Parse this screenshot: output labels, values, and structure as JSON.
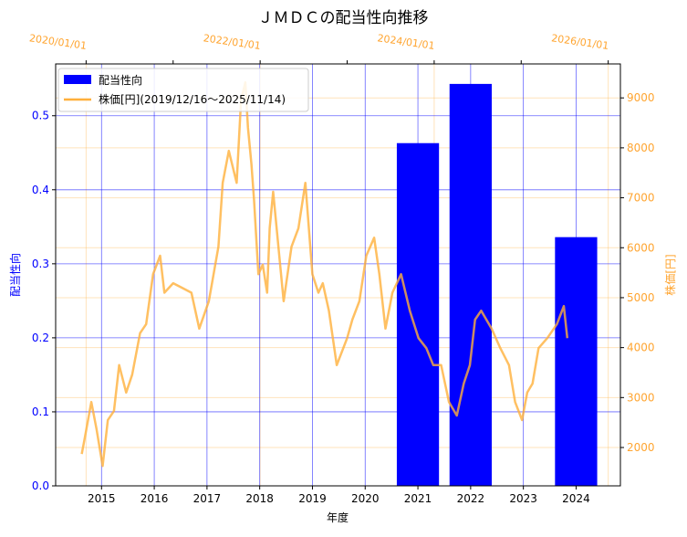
{
  "chart_data": {
    "type": "bar",
    "title": "ＪＭＤＣの配当性向推移",
    "xlabel": "年度",
    "ylabel": "配当性向",
    "ylabel_right": "株価[円]",
    "xlim": [
      2014.13,
      2024.84
    ],
    "ylim": [
      0,
      0.57
    ],
    "ylim_right": [
      1232,
      9680
    ],
    "xlim_top": [
      2019.65,
      2026.14
    ],
    "grid": true,
    "legend_position": "top-left",
    "x_ticks": [
      "2015",
      "2016",
      "2017",
      "2018",
      "2019",
      "2020",
      "2021",
      "2022",
      "2023",
      "2024"
    ],
    "y_ticks": [
      "0.0",
      "0.1",
      "0.2",
      "0.3",
      "0.4",
      "0.5"
    ],
    "y_ticks_right": [
      "2000",
      "3000",
      "4000",
      "5000",
      "6000",
      "7000",
      "8000",
      "9000"
    ],
    "x_ticks_top": [
      "2020/01/01",
      "2022/01/01",
      "2024/01/01",
      "2026/01/01"
    ],
    "series": [
      {
        "name": "配当性向",
        "type": "bar",
        "color": "#0000ff",
        "categories": [
          2021,
          2022,
          2024
        ],
        "values": [
          0.463,
          0.543,
          0.336
        ]
      },
      {
        "name": "株価[円](2019/12/16〜2025/11/14)",
        "type": "line",
        "color": "#ffb03b",
        "axis": "right-top",
        "x": [
          2019.95,
          2019.98,
          2020.06,
          2020.12,
          2020.19,
          2020.25,
          2020.32,
          2020.38,
          2020.46,
          2020.53,
          2020.62,
          2020.69,
          2020.77,
          2020.85,
          2020.9,
          2021.0,
          2021.1,
          2021.21,
          2021.3,
          2021.41,
          2021.52,
          2021.57,
          2021.64,
          2021.73,
          2021.78,
          2021.83,
          2021.86,
          2021.9,
          2021.93,
          2021.98,
          2022.03,
          2022.08,
          2022.11,
          2022.15,
          2022.22,
          2022.27,
          2022.36,
          2022.44,
          2022.52,
          2022.6,
          2022.67,
          2022.72,
          2022.79,
          2022.88,
          2023.0,
          2023.06,
          2023.14,
          2023.22,
          2023.31,
          2023.37,
          2023.44,
          2023.52,
          2023.62,
          2023.72,
          2023.82,
          2023.91,
          2023.99,
          2024.08,
          2024.17,
          2024.26,
          2024.34,
          2024.41,
          2024.47,
          2024.54,
          2024.66,
          2024.76,
          2024.86,
          2024.93,
          2025.01,
          2025.07,
          2025.13,
          2025.2,
          2025.3,
          2025.41,
          2025.49,
          2025.53
        ],
        "values": [
          1870,
          2150,
          2910,
          2370,
          1630,
          2550,
          2730,
          3650,
          3100,
          3460,
          4290,
          4470,
          5470,
          5840,
          5100,
          5290,
          5200,
          5100,
          4380,
          4930,
          6020,
          7300,
          7940,
          7300,
          8950,
          9310,
          8400,
          7670,
          6940,
          5470,
          5660,
          5100,
          6390,
          7120,
          5840,
          4930,
          6020,
          6390,
          7300,
          5470,
          5100,
          5290,
          4740,
          3650,
          4190,
          4560,
          4930,
          5840,
          6200,
          5470,
          4380,
          5100,
          5470,
          4740,
          4190,
          3990,
          3650,
          3650,
          2910,
          2640,
          3280,
          3650,
          4560,
          4740,
          4380,
          3990,
          3650,
          2910,
          2550,
          3100,
          3280,
          3990,
          4190,
          4470,
          4830,
          4190
        ]
      }
    ]
  }
}
